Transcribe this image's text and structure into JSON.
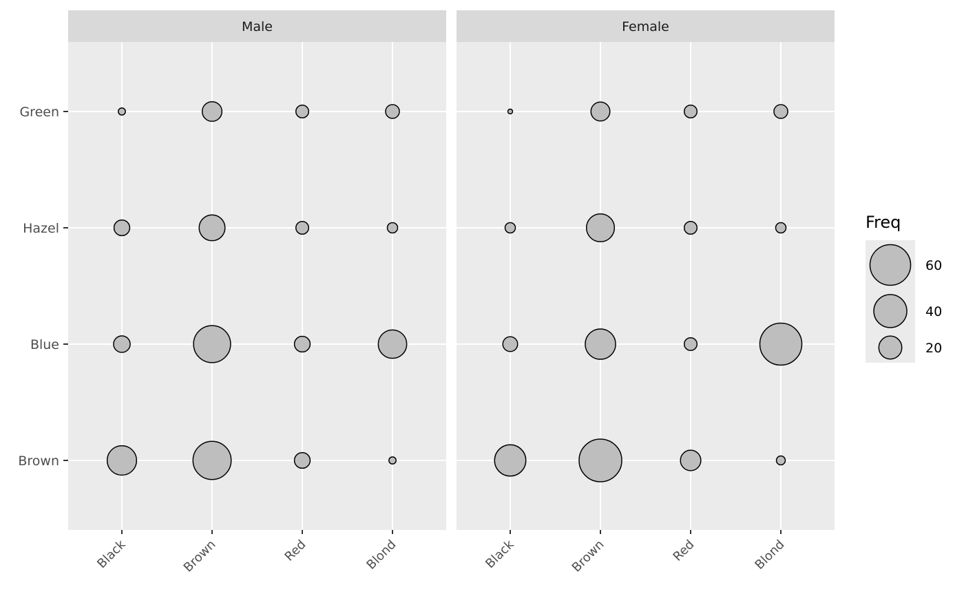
{
  "chart_data": {
    "type": "scatter",
    "facets": [
      "Male",
      "Female"
    ],
    "x_categories": [
      "Black",
      "Brown",
      "Red",
      "Blond"
    ],
    "y_categories": [
      "Brown",
      "Blue",
      "Hazel",
      "Green"
    ],
    "series": [
      {
        "facet": "Male",
        "values": {
          "Brown": [
            32,
            53,
            10,
            3
          ],
          "Blue": [
            11,
            50,
            10,
            30
          ],
          "Hazel": [
            10,
            25,
            7,
            5
          ],
          "Green": [
            3,
            15,
            7,
            8
          ]
        }
      },
      {
        "facet": "Female",
        "values": {
          "Brown": [
            36,
            66,
            16,
            4
          ],
          "Blue": [
            9,
            34,
            7,
            64
          ],
          "Hazel": [
            5,
            29,
            7,
            5
          ],
          "Green": [
            2,
            14,
            7,
            8
          ]
        }
      }
    ],
    "legend": {
      "title": "Freq",
      "entries": [
        60,
        40,
        20
      ],
      "placement": "right"
    },
    "grid": true,
    "point_fill": "#bebebe",
    "point_stroke": "#000000",
    "panel_bg": "#ebebeb",
    "strip_bg": "#d9d9d9"
  }
}
